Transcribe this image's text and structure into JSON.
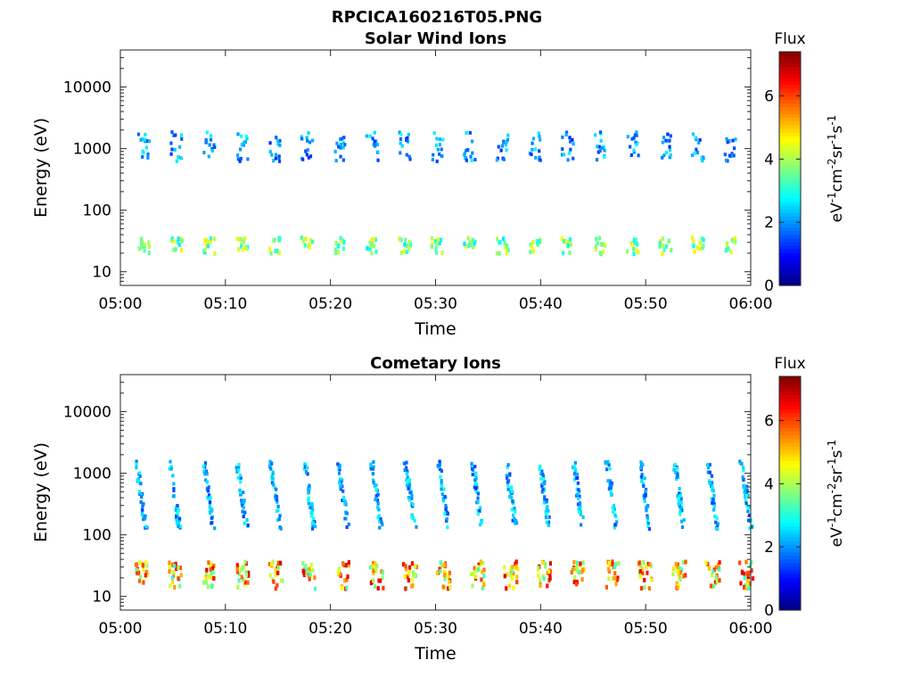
{
  "figure": {
    "title": "RPCICA160216T05.PNG"
  },
  "colormap": "jet",
  "chart_data": [
    {
      "type": "heatmap",
      "title": "Solar Wind Ions",
      "xlabel": "Time",
      "ylabel": "Energy (eV)",
      "x_ticks": [
        "05:00",
        "05:10",
        "05:20",
        "05:30",
        "05:40",
        "05:50",
        "06:00"
      ],
      "x_range_minutes": [
        0,
        60
      ],
      "y_scale": "log",
      "y_ticks": [
        "10",
        "100",
        "1000",
        "10000"
      ],
      "ylim": [
        6,
        40000
      ],
      "colorbar": {
        "label": "Flux",
        "units": "eV-1cm-2sr-1s-1",
        "ticks": [
          "0",
          "2",
          "4",
          "6"
        ],
        "range": [
          0,
          7.4
        ]
      },
      "scan_period_min": 3.1,
      "scan_start_min": 2.1,
      "bands": [
        {
          "name": "high",
          "energy_eV": [
            700,
            1500
          ],
          "flux": 2.2
        },
        {
          "name": "low",
          "energy_eV": [
            20,
            35
          ],
          "flux": 3.4
        }
      ]
    },
    {
      "type": "heatmap",
      "title": "Cometary Ions",
      "xlabel": "Time",
      "ylabel": "Energy (eV)",
      "x_ticks": [
        "05:00",
        "05:10",
        "05:20",
        "05:30",
        "05:40",
        "05:50",
        "06:00"
      ],
      "x_range_minutes": [
        0,
        60
      ],
      "y_scale": "log",
      "y_ticks": [
        "10",
        "100",
        "1000",
        "10000"
      ],
      "ylim": [
        6,
        40000
      ],
      "colorbar": {
        "label": "Flux",
        "units": "eV-1cm-2sr-1s-1",
        "ticks": [
          "0",
          "2",
          "4",
          "6"
        ],
        "range": [
          0,
          7.4
        ]
      },
      "scan_period_min": 3.2,
      "scan_start_min": 1.8,
      "bands": [
        {
          "name": "streak",
          "energy_eV": [
            150,
            1000
          ],
          "flux": 2.3
        },
        {
          "name": "low",
          "energy_eV": [
            12,
            35
          ],
          "flux": 5.6
        }
      ]
    }
  ]
}
